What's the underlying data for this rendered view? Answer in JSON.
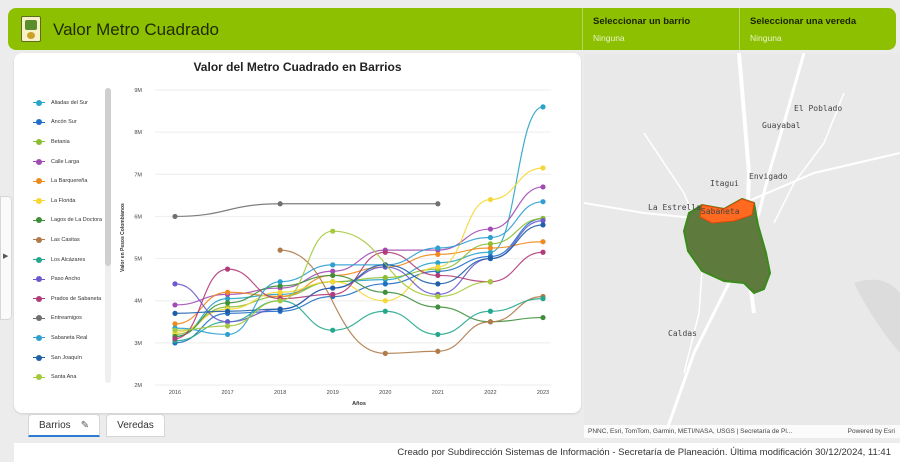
{
  "header": {
    "title": "Valor Metro Cuadrado",
    "filters": [
      {
        "label": "Seleccionar un barrio",
        "value": "Ninguna"
      },
      {
        "label": "Seleccionar una vereda",
        "value": "Ninguna"
      }
    ]
  },
  "tabs": [
    {
      "label": "Barrios",
      "active": true,
      "icon": "pencil-icon"
    },
    {
      "label": "Veredas",
      "active": false
    }
  ],
  "map": {
    "attribution": "PNNC, Esri, TomTom, Garmin, METI/NASA, USGS | Secretaría de Pl...",
    "powered_by": "Powered by Esri",
    "places": [
      "El Poblado",
      "Guayabal",
      "Itagui",
      "Envigado",
      "La Estrella",
      "Sabaneta",
      "Caldas"
    ]
  },
  "footer": {
    "text": "Creado por Subdirección Sistemas de Información - Secretaría de Planeación. Última modificación 30/12/2024, 11:41"
  },
  "chart_data": {
    "type": "line",
    "title": "Valor del Metro Cuadrado en Barrios",
    "xlabel": "Años",
    "ylabel": "Valor en Pesos Colombianos",
    "ytick_labels": [
      "2M",
      "3M",
      "4M",
      "5M",
      "6M",
      "7M",
      "8M",
      "9M"
    ],
    "ylim": [
      2000000,
      9000000
    ],
    "categories": [
      "2016",
      "2017",
      "2018",
      "2019",
      "2020",
      "2021",
      "2022",
      "2023"
    ],
    "legend_position": "left",
    "series": [
      {
        "name": "Aliadas del Sur",
        "color": "#2aa3c9",
        "values": [
          3150000,
          4050000,
          4150000,
          4450000,
          4500000,
          4900000,
          5150000,
          8600000
        ]
      },
      {
        "name": "Ancón Sur",
        "color": "#1f6fc7",
        "values": [
          3000000,
          3700000,
          3750000,
          4100000,
          4400000,
          4700000,
          5050000,
          5950000
        ]
      },
      {
        "name": "Betania",
        "color": "#8cbd2f",
        "values": [
          3200000,
          3850000,
          4100000,
          4450000,
          4550000,
          4750000,
          5350000,
          5950000
        ]
      },
      {
        "name": "Calle Larga",
        "color": "#a24bb5",
        "values": [
          3900000,
          4150000,
          4300000,
          4700000,
          5200000,
          5200000,
          5700000,
          6700000
        ]
      },
      {
        "name": "La Barquereña",
        "color": "#ef8a1f",
        "values": [
          3450000,
          4200000,
          4100000,
          4600000,
          4800000,
          5100000,
          5250000,
          5400000
        ]
      },
      {
        "name": "La Florida",
        "color": "#f7d734",
        "values": [
          3250000,
          3800000,
          4200000,
          4450000,
          4000000,
          4800000,
          6400000,
          7150000
        ]
      },
      {
        "name": "Lagos de La Doctora",
        "color": "#3e8e3a",
        "values": [
          3150000,
          3950000,
          4350000,
          4600000,
          4200000,
          3850000,
          3500000,
          3600000
        ]
      },
      {
        "name": "Las Casitas",
        "color": "#b07a4a",
        "values": [
          null,
          null,
          5200000,
          null,
          2750000,
          2800000,
          3500000,
          4100000
        ]
      },
      {
        "name": "Los Alcázares",
        "color": "#23a88d",
        "values": [
          3050000,
          3500000,
          4000000,
          3300000,
          3750000,
          3200000,
          3750000,
          4050000
        ]
      },
      {
        "name": "Paso Ancho",
        "color": "#6a5acd",
        "values": [
          4400000,
          3500000,
          3800000,
          4300000,
          4800000,
          4150000,
          5000000,
          5900000
        ]
      },
      {
        "name": "Prados de Sabaneta",
        "color": "#b23b7a",
        "values": [
          3100000,
          4750000,
          4050000,
          4150000,
          5150000,
          4600000,
          4450000,
          5150000
        ]
      },
      {
        "name": "Entreamigos",
        "color": "#707070",
        "values": [
          6000000,
          null,
          6300000,
          null,
          null,
          6300000,
          null,
          null
        ]
      },
      {
        "name": "Sabaneta Real",
        "color": "#2f9fd0",
        "values": [
          3350000,
          3200000,
          4450000,
          4850000,
          4850000,
          5250000,
          5500000,
          6350000
        ]
      },
      {
        "name": "San Joaquín",
        "color": "#1f5fa8",
        "values": [
          3700000,
          3750000,
          3800000,
          4300000,
          4850000,
          4400000,
          5000000,
          5800000
        ]
      },
      {
        "name": "Santa Ana",
        "color": "#a5c93d",
        "values": [
          3300000,
          3400000,
          4000000,
          5650000,
          null,
          4100000,
          4450000,
          null
        ]
      }
    ]
  }
}
